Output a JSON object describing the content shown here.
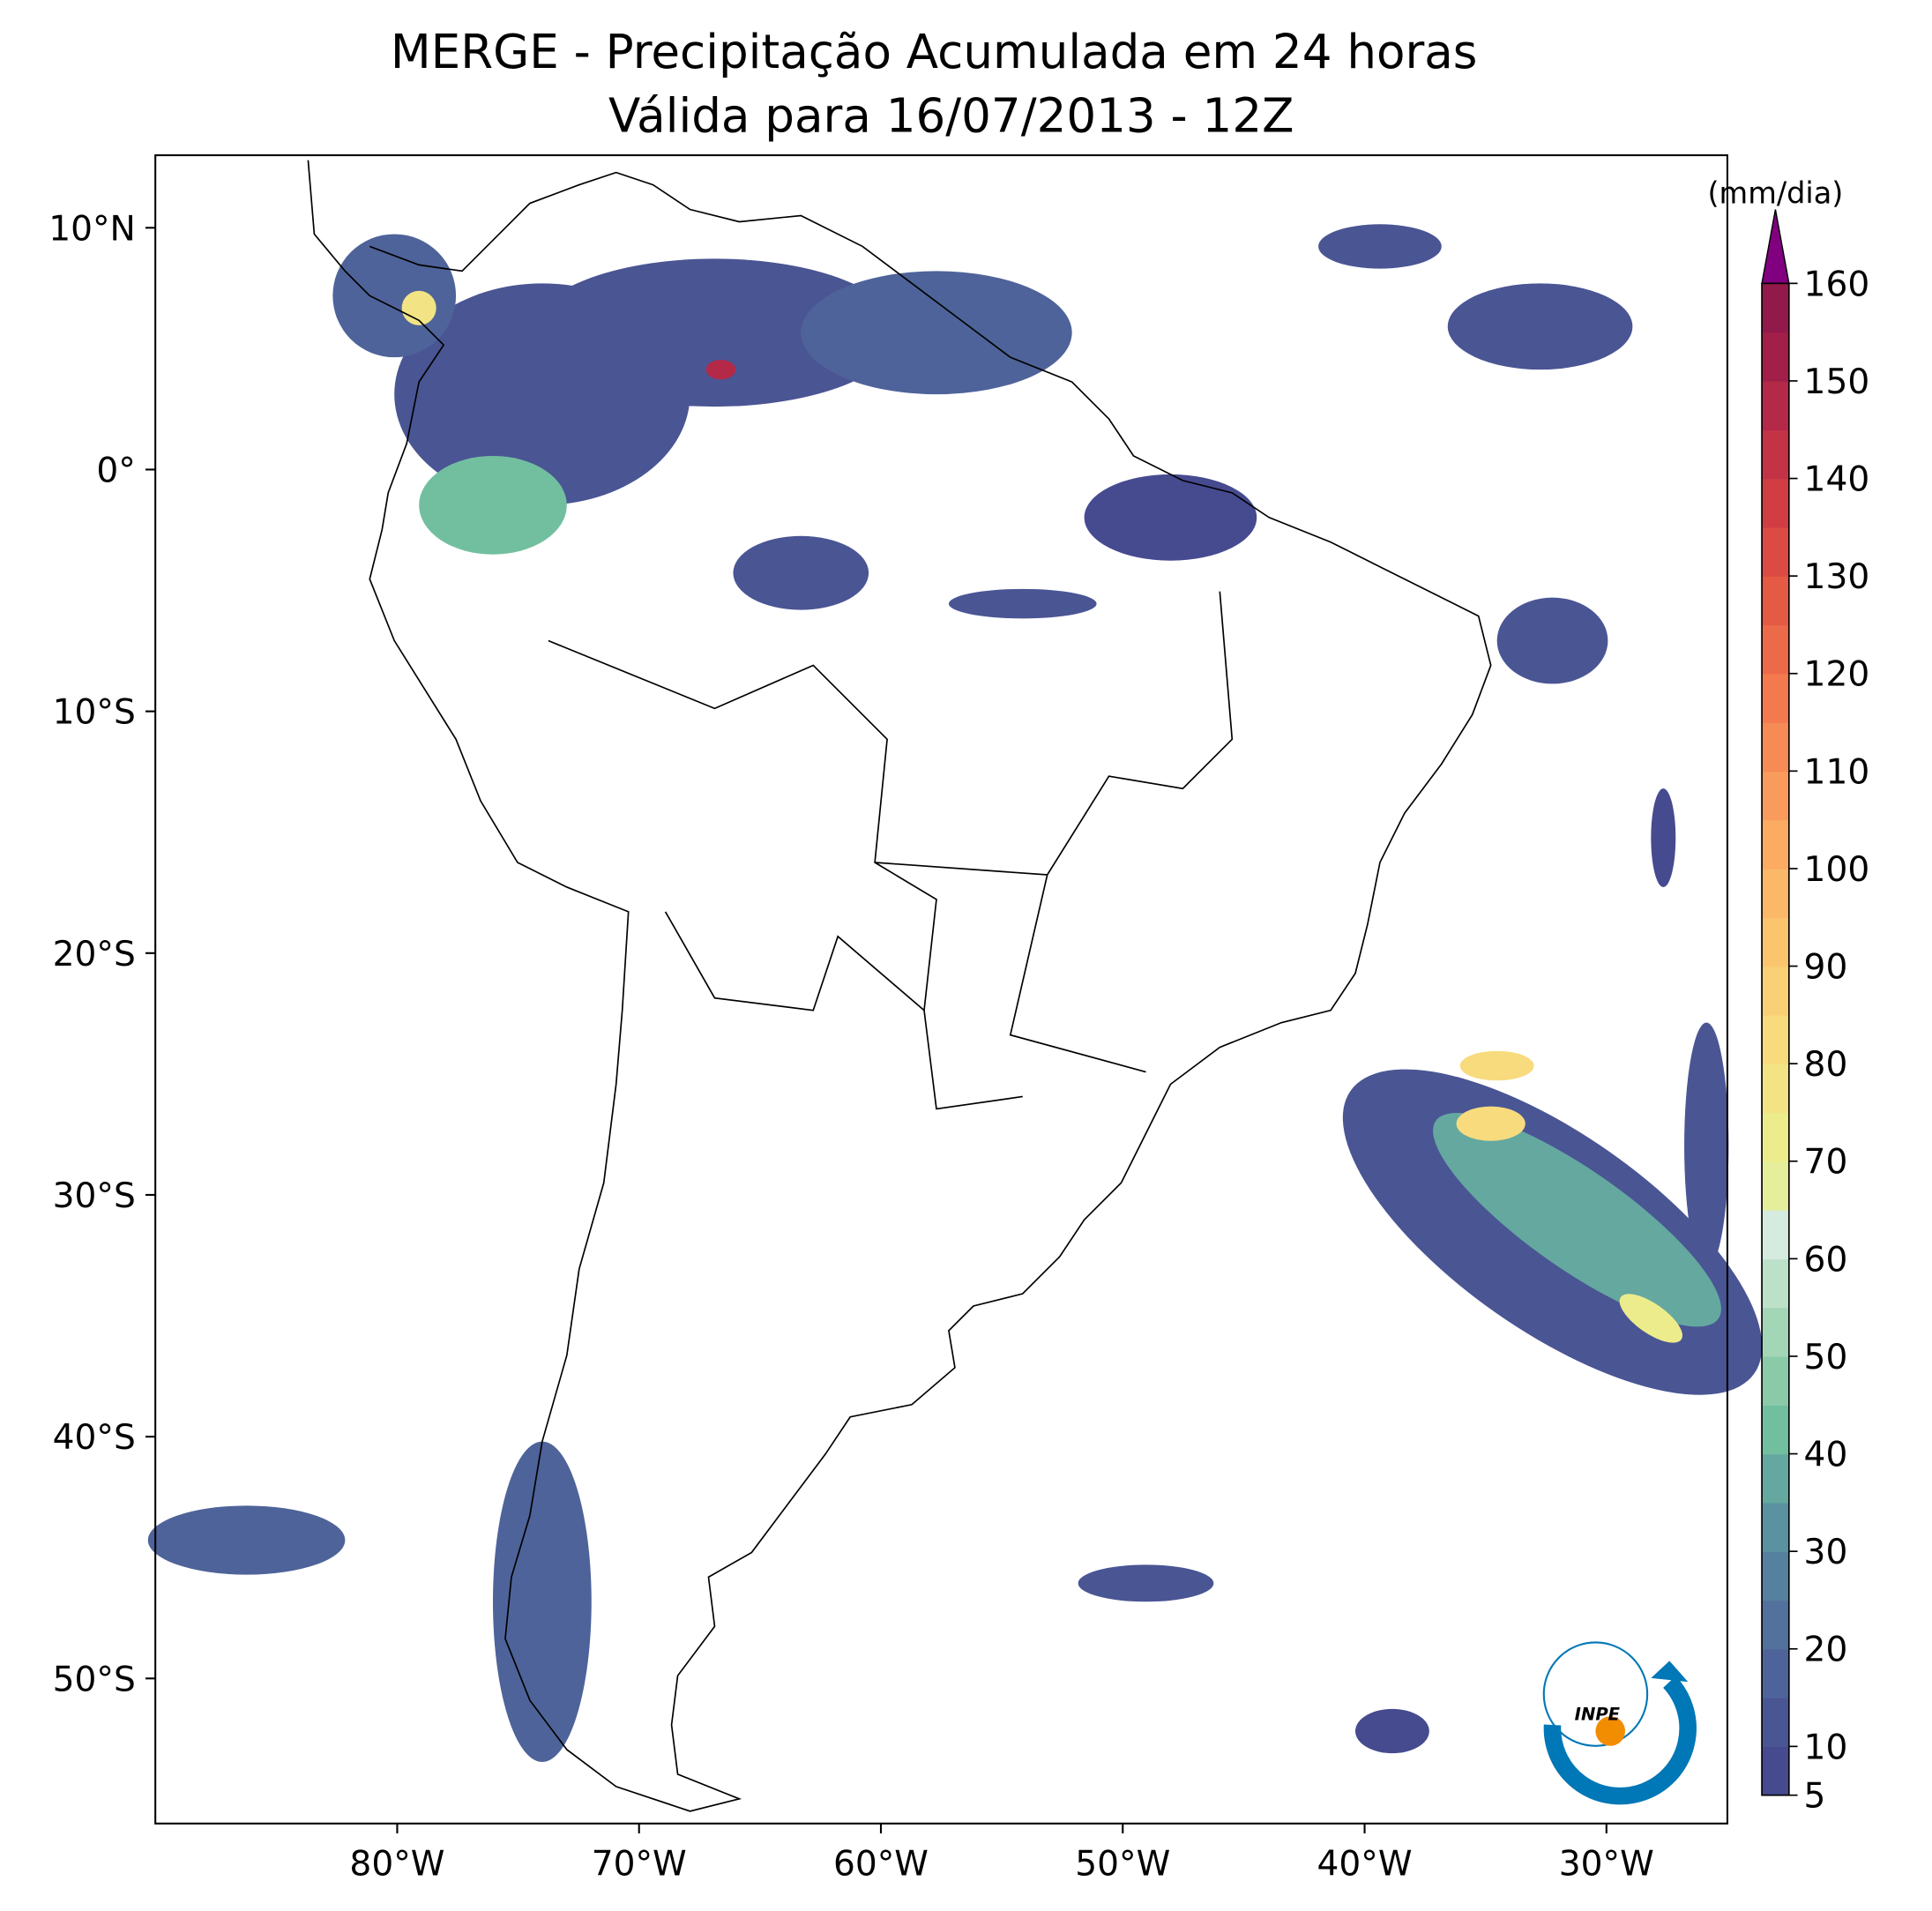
{
  "title": "MERGE - Precipitação Acumulada em 24 horas",
  "subtitle": "Válida para 16/07/2013 - 12Z",
  "map": {
    "xlim": [
      -90,
      -25
    ],
    "ylim": [
      -56,
      13
    ],
    "xticks": [
      {
        "value": -80,
        "label": "80°W"
      },
      {
        "value": -70,
        "label": "70°W"
      },
      {
        "value": -60,
        "label": "60°W"
      },
      {
        "value": -50,
        "label": "50°W"
      },
      {
        "value": -40,
        "label": "40°W"
      },
      {
        "value": -30,
        "label": "30°W"
      }
    ],
    "yticks": [
      {
        "value": 10,
        "label": "10°N"
      },
      {
        "value": 0,
        "label": "0°"
      },
      {
        "value": -10,
        "label": "10°S"
      },
      {
        "value": -20,
        "label": "20°S"
      },
      {
        "value": -30,
        "label": "30°S"
      },
      {
        "value": -40,
        "label": "40°S"
      },
      {
        "value": -50,
        "label": "50°S"
      }
    ]
  },
  "colorbar": {
    "label": "(mm/dia)",
    "lim": [
      5,
      160
    ],
    "ticks": [
      5,
      10,
      20,
      30,
      40,
      50,
      60,
      70,
      80,
      90,
      100,
      110,
      120,
      130,
      140,
      150,
      160
    ],
    "colors": [
      "#464a8f",
      "#4a5594",
      "#4e6399",
      "#52719c",
      "#55819e",
      "#5b92a0",
      "#64a8a0",
      "#72bf9f",
      "#8acaa9",
      "#a3d5b7",
      "#bde1c8",
      "#d6ebe0",
      "#e5ee9a",
      "#ecec8c",
      "#f2e384",
      "#f7db7c",
      "#f9d075",
      "#fbc56e",
      "#fbb868",
      "#fbab62",
      "#f99b5c",
      "#f68b55",
      "#f27a4e",
      "#ec6a49",
      "#e55a45",
      "#dc4b43",
      "#d03e44",
      "#c33346",
      "#b42848",
      "#a21f49",
      "#921a4b"
    ],
    "extend_color": "#800080"
  },
  "logo": {
    "text": "INPE"
  }
}
